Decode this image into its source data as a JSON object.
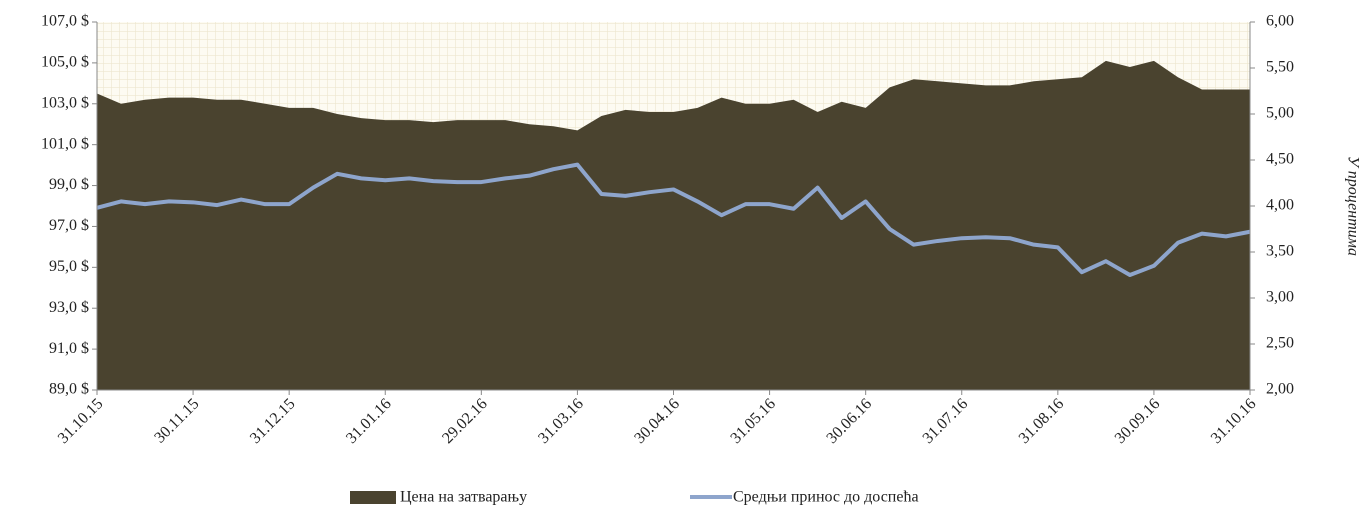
{
  "chart_data": {
    "type": "area-line",
    "categories": [
      "31.10.15",
      null,
      null,
      null,
      "30.11.15",
      null,
      null,
      null,
      "31.12.15",
      null,
      null,
      null,
      "31.01.16",
      null,
      null,
      null,
      "29.02.16",
      null,
      null,
      null,
      "31.03.16",
      null,
      null,
      null,
      "30.04.16",
      null,
      null,
      null,
      "31.05.16",
      null,
      null,
      null,
      "30.06.16",
      null,
      null,
      null,
      "31.07.16",
      null,
      null,
      null,
      "31.08.16",
      null,
      null,
      null,
      "30.09.16",
      null,
      null,
      null,
      "31.10.16"
    ],
    "series": [
      {
        "name": "Цена на затварању",
        "color": "#4a432f",
        "kind": "area",
        "values": [
          103.5,
          103.0,
          103.2,
          103.3,
          103.3,
          103.2,
          103.2,
          103.0,
          102.8,
          102.8,
          102.5,
          102.3,
          102.2,
          102.2,
          102.1,
          102.2,
          102.2,
          102.2,
          102.0,
          101.9,
          101.7,
          102.4,
          102.7,
          102.6,
          102.6,
          102.8,
          103.3,
          103.0,
          103.0,
          103.2,
          102.6,
          103.1,
          102.8,
          103.8,
          104.2,
          104.1,
          104.0,
          103.9,
          103.9,
          104.1,
          104.2,
          104.3,
          105.1,
          104.8,
          105.1,
          104.3,
          103.7,
          103.7,
          103.7
        ]
      },
      {
        "name": "Средњи принос до доспећа",
        "color": "#8ea5cc",
        "kind": "line",
        "axis": "y2",
        "values": [
          3.98,
          4.05,
          4.02,
          4.05,
          4.04,
          4.01,
          4.07,
          4.02,
          4.02,
          4.2,
          4.35,
          4.3,
          4.28,
          4.3,
          4.27,
          4.26,
          4.26,
          4.3,
          4.33,
          4.4,
          4.45,
          4.13,
          4.11,
          4.15,
          4.18,
          4.05,
          3.9,
          4.02,
          4.02,
          3.97,
          4.2,
          3.87,
          4.05,
          3.75,
          3.58,
          3.62,
          3.65,
          3.66,
          3.65,
          3.58,
          3.55,
          3.28,
          3.4,
          3.25,
          3.35,
          3.6,
          3.7,
          3.67,
          3.72
        ]
      }
    ],
    "ylim": [
      89,
      107
    ],
    "yticks": [
      {
        "value": 89,
        "label": "89,0 $"
      },
      {
        "value": 91,
        "label": "91,0 $"
      },
      {
        "value": 93,
        "label": "93,0 $"
      },
      {
        "value": 95,
        "label": "95,0 $"
      },
      {
        "value": 97,
        "label": "97,0 $"
      },
      {
        "value": 99,
        "label": "99,0 $"
      },
      {
        "value": 101,
        "label": "101,0 $"
      },
      {
        "value": 103,
        "label": "103,0 $"
      },
      {
        "value": 105,
        "label": "105,0 $"
      },
      {
        "value": 107,
        "label": "107,0 $"
      }
    ],
    "y2lim": [
      2,
      6
    ],
    "y2ticks": [
      {
        "value": 2,
        "label": "2,00"
      },
      {
        "value": 2.5,
        "label": "2,50"
      },
      {
        "value": 3,
        "label": "3,00"
      },
      {
        "value": 3.5,
        "label": "3,50"
      },
      {
        "value": 4,
        "label": "4,00"
      },
      {
        "value": 4.5,
        "label": "4,50"
      },
      {
        "value": 5,
        "label": "5,00"
      },
      {
        "value": 5.5,
        "label": "5,50"
      },
      {
        "value": 6,
        "label": "6,00"
      }
    ],
    "y2label": "У процентима",
    "grid": true,
    "legend": "bottom"
  }
}
